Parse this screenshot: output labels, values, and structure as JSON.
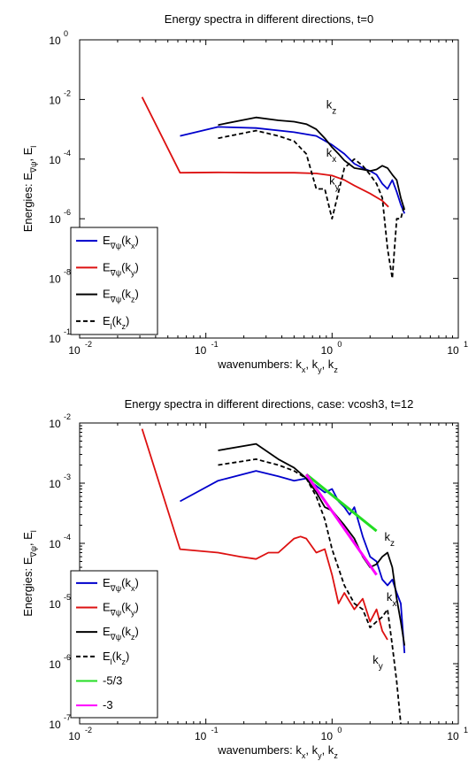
{
  "chart_data": [
    {
      "type": "line",
      "title": "Energy spectra in different directions, t=0",
      "xlabel": "wavenumbers: k_x, k_y, k_z",
      "ylabel": "Energies: E_∇ψ, E_l",
      "xscale": "log",
      "yscale": "log",
      "xlim": [
        0.01,
        10
      ],
      "ylim": [
        1e-10,
        1
      ],
      "xticks": [
        {
          "base": "10",
          "exp": "-2"
        },
        {
          "base": "10",
          "exp": "-1"
        },
        {
          "base": "10",
          "exp": "0"
        },
        {
          "base": "10",
          "exp": "1"
        }
      ],
      "yticks": [
        {
          "base": "10",
          "exp": "-10"
        },
        {
          "base": "10",
          "exp": "-8"
        },
        {
          "base": "10",
          "exp": "-6"
        },
        {
          "base": "10",
          "exp": "-4"
        },
        {
          "base": "10",
          "exp": "-2"
        },
        {
          "base": "10",
          "exp": "0"
        }
      ],
      "legend_position": "bottom-left",
      "series": [
        {
          "name": "E_∇ψ(k_x)",
          "color": "#0000cc",
          "dash": "solid",
          "x": [
            0.0625,
            0.125,
            0.25,
            0.5,
            0.75,
            1.0,
            1.25,
            1.5,
            1.75,
            2.0,
            2.25,
            2.5,
            2.75,
            3.0,
            3.25,
            3.5,
            3.75
          ],
          "y": [
            0.0006,
            0.0012,
            0.0011,
            0.0008,
            0.0006,
            0.0003,
            0.00015,
            7e-05,
            5e-05,
            4e-05,
            3e-05,
            1.5e-05,
            1e-05,
            2e-05,
            8e-06,
            3e-06,
            1.5e-06
          ]
        },
        {
          "name": "E_∇ψ(k_y)",
          "color": "#dd1111",
          "dash": "solid",
          "x": [
            0.03125,
            0.0625,
            0.125,
            0.25,
            0.5,
            0.75,
            1.0,
            1.25,
            1.5,
            2.0,
            2.5,
            2.8
          ],
          "y": [
            0.012,
            3.5e-05,
            3.6e-05,
            3.5e-05,
            3.5e-05,
            3.3e-05,
            2.8e-05,
            2e-05,
            1.3e-05,
            7e-06,
            4e-06,
            2.5e-06
          ]
        },
        {
          "name": "E_∇ψ(k_z)",
          "color": "#000000",
          "dash": "solid",
          "x": [
            0.125,
            0.25,
            0.375,
            0.5,
            0.625,
            0.75,
            0.875,
            1.0,
            1.125,
            1.25,
            1.5,
            1.75,
            2.0,
            2.25,
            2.5,
            2.75,
            3.0,
            3.25,
            3.5,
            3.75
          ],
          "y": [
            0.0014,
            0.0025,
            0.002,
            0.0018,
            0.0015,
            0.001,
            0.0005,
            0.00025,
            0.00015,
            9e-05,
            5e-05,
            4.5e-05,
            4e-05,
            4.5e-05,
            6e-05,
            5e-05,
            3e-05,
            2e-05,
            5e-06,
            2e-06
          ]
        },
        {
          "name": "E_l(k_z)",
          "color": "#000000",
          "dash": "dashed",
          "x": [
            0.125,
            0.25,
            0.375,
            0.5,
            0.625,
            0.75,
            0.875,
            1.0,
            1.25,
            1.5,
            1.75,
            2.0,
            2.25,
            2.5,
            2.75,
            3.0,
            3.25,
            3.5,
            3.75
          ],
          "y": [
            0.0005,
            0.0009,
            0.0006,
            0.0004,
            0.00015,
            1e-05,
            1e-05,
            1e-06,
            5e-05,
            0.0001,
            6e-05,
            3e-05,
            1.5e-05,
            5e-06,
            1e-07,
            1e-08,
            1e-06,
            1e-06,
            3e-06
          ]
        }
      ],
      "annotations": [
        {
          "text": "k",
          "sub": "z",
          "x": 0.9,
          "y": 0.005
        },
        {
          "text": "k",
          "sub": "x",
          "x": 0.9,
          "y": 0.00012
        },
        {
          "text": "k",
          "sub": "y",
          "x": 0.95,
          "y": 1.4e-05
        }
      ]
    },
    {
      "type": "line",
      "title": "Energy spectra in different directions, case: vcosh3, t=12",
      "xlabel": "wavenumbers: k_x, k_y, k_z",
      "ylabel": "Energies: E_∇ψ, E_l",
      "xscale": "log",
      "yscale": "log",
      "xlim": [
        0.01,
        10
      ],
      "ylim": [
        1e-07,
        0.01
      ],
      "xticks": [
        {
          "base": "10",
          "exp": "-2"
        },
        {
          "base": "10",
          "exp": "-1"
        },
        {
          "base": "10",
          "exp": "0"
        },
        {
          "base": "10",
          "exp": "1"
        }
      ],
      "yticks": [
        {
          "base": "10",
          "exp": "-7"
        },
        {
          "base": "10",
          "exp": "-6"
        },
        {
          "base": "10",
          "exp": "-5"
        },
        {
          "base": "10",
          "exp": "-4"
        },
        {
          "base": "10",
          "exp": "-3"
        },
        {
          "base": "10",
          "exp": "-2"
        }
      ],
      "legend_position": "bottom-left",
      "series": [
        {
          "name": "E_∇ψ(k_x)",
          "color": "#0000cc",
          "dash": "solid",
          "x": [
            0.0625,
            0.125,
            0.25,
            0.375,
            0.5,
            0.625,
            0.75,
            0.875,
            1.0,
            1.125,
            1.25,
            1.375,
            1.5,
            1.75,
            2.0,
            2.25,
            2.5,
            2.75,
            3.0,
            3.25,
            3.5,
            3.75
          ],
          "y": [
            0.0005,
            0.0011,
            0.0016,
            0.0013,
            0.0011,
            0.0012,
            0.0009,
            0.0007,
            0.0008,
            0.0005,
            0.0004,
            0.0003,
            0.0004,
            0.00013,
            6e-05,
            5e-05,
            2.5e-05,
            2e-05,
            2.5e-05,
            1.5e-05,
            1e-05,
            1.5e-06
          ]
        },
        {
          "name": "E_∇ψ(k_y)",
          "color": "#dd1111",
          "dash": "solid",
          "x": [
            0.03125,
            0.0625,
            0.125,
            0.1875,
            0.25,
            0.3125,
            0.375,
            0.5,
            0.5625,
            0.625,
            0.75,
            0.875,
            1.0,
            1.125,
            1.25,
            1.5,
            1.75,
            2.0,
            2.25,
            2.5,
            2.75
          ],
          "y": [
            0.008,
            8e-05,
            7e-05,
            6e-05,
            5.5e-05,
            7e-05,
            7e-05,
            0.00012,
            0.00013,
            0.00012,
            7e-05,
            8e-05,
            3e-05,
            1e-05,
            1.5e-05,
            8e-06,
            1.2e-05,
            5e-06,
            8e-06,
            3.5e-06,
            2.5e-06
          ]
        },
        {
          "name": "E_∇ψ(k_z)",
          "color": "#000000",
          "dash": "solid",
          "x": [
            0.125,
            0.25,
            0.375,
            0.5,
            0.625,
            0.75,
            0.875,
            1.0,
            1.25,
            1.5,
            1.75,
            2.0,
            2.25,
            2.5,
            2.75,
            3.0,
            3.25,
            3.5,
            3.75
          ],
          "y": [
            0.0035,
            0.0045,
            0.0025,
            0.0018,
            0.0012,
            0.0007,
            0.0004,
            0.00035,
            0.0002,
            0.00012,
            6e-05,
            4e-05,
            4.5e-05,
            6e-05,
            7e-05,
            4e-05,
            1.2e-05,
            5e-06,
            2e-06
          ]
        },
        {
          "name": "E_l(k_z)",
          "color": "#000000",
          "dash": "dashed",
          "x": [
            0.125,
            0.25,
            0.375,
            0.5,
            0.625,
            0.75,
            0.875,
            1.0,
            1.25,
            1.5,
            1.75,
            2.0,
            2.25,
            2.5,
            2.75,
            3.0,
            3.25,
            3.5,
            3.75
          ],
          "y": [
            0.002,
            0.0025,
            0.002,
            0.0016,
            0.0012,
            0.0006,
            0.00025,
            8e-05,
            2e-05,
            1e-05,
            8e-06,
            4e-06,
            5e-06,
            6e-06,
            8e-06,
            2e-06,
            5e-07,
            1e-07,
            8e-08
          ]
        },
        {
          "name": "-5/3",
          "color": "#22dd22",
          "dash": "solid",
          "x": [
            0.625,
            2.25
          ],
          "y": [
            0.0014,
            0.00016
          ]
        },
        {
          "name": "-3",
          "color": "#ff00ff",
          "dash": "solid",
          "x": [
            0.625,
            2.25
          ],
          "y": [
            0.0014,
            3e-05
          ]
        }
      ],
      "annotations": [
        {
          "text": "k",
          "sub": "z",
          "x": 2.6,
          "y": 0.00011
        },
        {
          "text": "k",
          "sub": "x",
          "x": 2.7,
          "y": 1.1e-05
        },
        {
          "text": "k",
          "sub": "y",
          "x": 2.1,
          "y": 1e-06
        }
      ]
    }
  ]
}
